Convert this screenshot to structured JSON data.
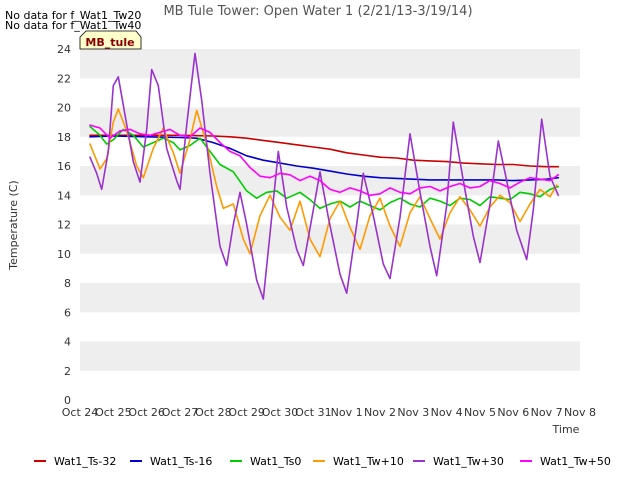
{
  "notes": [
    "No data for f_Wat1_Tw20",
    "No data for f_Wat1_Tw40"
  ],
  "site_tag": "MB_tule",
  "chart_data": {
    "type": "line",
    "title": "MB Tule Tower: Open Water 1 (2/21/13-3/19/14)",
    "xlabel": "Time",
    "ylabel": "Temperature (C)",
    "ylim": [
      0,
      24
    ],
    "yticks": [
      0,
      2,
      4,
      6,
      8,
      10,
      12,
      14,
      16,
      18,
      20,
      22,
      24
    ],
    "xlim": [
      0,
      15
    ],
    "xticks": [
      0,
      1,
      2,
      3,
      4,
      5,
      6,
      7,
      8,
      9,
      10,
      11,
      12,
      13,
      14,
      15
    ],
    "xtick_labels": [
      "Oct 24",
      "Oct 25",
      "Oct 26",
      "Oct 27",
      "Oct 28",
      "Oct 29",
      "Oct 30",
      "Oct 31",
      "Nov 1",
      "Nov 2",
      "Nov 3",
      "Nov 4",
      "Nov 5",
      "Nov 6",
      "Nov 7",
      "Nov 8"
    ],
    "grid": "horizontal bands",
    "legend_position": "bottom",
    "series": [
      {
        "name": "Wat1_Ts-32",
        "color": "#cc0000",
        "points": [
          [
            0.3,
            18.1
          ],
          [
            1,
            18.1
          ],
          [
            2,
            18.1
          ],
          [
            3,
            18.1
          ],
          [
            4,
            18.05
          ],
          [
            4.5,
            18.0
          ],
          [
            5,
            17.9
          ],
          [
            5.5,
            17.75
          ],
          [
            6,
            17.6
          ],
          [
            6.5,
            17.45
          ],
          [
            7,
            17.3
          ],
          [
            7.5,
            17.15
          ],
          [
            8,
            16.9
          ],
          [
            8.5,
            16.75
          ],
          [
            9,
            16.6
          ],
          [
            9.5,
            16.55
          ],
          [
            10,
            16.4
          ],
          [
            10.5,
            16.35
          ],
          [
            11,
            16.3
          ],
          [
            11.5,
            16.2
          ],
          [
            12,
            16.15
          ],
          [
            12.5,
            16.1
          ],
          [
            13,
            16.1
          ],
          [
            13.5,
            16.0
          ],
          [
            14,
            15.95
          ],
          [
            14.35,
            15.95
          ]
        ]
      },
      {
        "name": "Wat1_Ts-16",
        "color": "#0000cc",
        "points": [
          [
            0.3,
            18.0
          ],
          [
            1,
            18.05
          ],
          [
            2,
            18.0
          ],
          [
            3,
            17.95
          ],
          [
            3.5,
            17.9
          ],
          [
            4,
            17.6
          ],
          [
            4.5,
            17.2
          ],
          [
            5,
            16.7
          ],
          [
            5.5,
            16.4
          ],
          [
            6,
            16.2
          ],
          [
            6.5,
            16.0
          ],
          [
            7,
            15.85
          ],
          [
            7.5,
            15.65
          ],
          [
            8,
            15.45
          ],
          [
            8.5,
            15.3
          ],
          [
            9,
            15.2
          ],
          [
            9.5,
            15.15
          ],
          [
            10,
            15.1
          ],
          [
            10.5,
            15.05
          ],
          [
            11,
            15.05
          ],
          [
            11.5,
            15.05
          ],
          [
            12,
            15.05
          ],
          [
            12.5,
            15.05
          ],
          [
            13,
            15.0
          ],
          [
            13.5,
            15.05
          ],
          [
            14,
            15.1
          ],
          [
            14.35,
            15.2
          ]
        ]
      },
      {
        "name": "Wat1_Ts0",
        "color": "#00cc00",
        "points": [
          [
            0.3,
            18.7
          ],
          [
            0.6,
            18.1
          ],
          [
            0.8,
            17.5
          ],
          [
            1.0,
            17.8
          ],
          [
            1.3,
            18.5
          ],
          [
            1.6,
            18.1
          ],
          [
            1.9,
            17.3
          ],
          [
            2.2,
            17.6
          ],
          [
            2.5,
            17.9
          ],
          [
            2.8,
            17.6
          ],
          [
            3.0,
            17.1
          ],
          [
            3.3,
            17.4
          ],
          [
            3.6,
            17.9
          ],
          [
            3.9,
            17.0
          ],
          [
            4.2,
            16.1
          ],
          [
            4.6,
            15.6
          ],
          [
            5.0,
            14.3
          ],
          [
            5.3,
            13.8
          ],
          [
            5.6,
            14.2
          ],
          [
            5.9,
            14.3
          ],
          [
            6.2,
            13.8
          ],
          [
            6.6,
            14.2
          ],
          [
            6.9,
            13.7
          ],
          [
            7.2,
            13.1
          ],
          [
            7.5,
            13.4
          ],
          [
            7.8,
            13.6
          ],
          [
            8.1,
            13.2
          ],
          [
            8.4,
            13.6
          ],
          [
            8.7,
            13.3
          ],
          [
            9.0,
            13.0
          ],
          [
            9.3,
            13.5
          ],
          [
            9.6,
            13.8
          ],
          [
            9.9,
            13.4
          ],
          [
            10.2,
            13.2
          ],
          [
            10.5,
            13.8
          ],
          [
            10.8,
            13.6
          ],
          [
            11.1,
            13.3
          ],
          [
            11.4,
            13.8
          ],
          [
            11.7,
            13.7
          ],
          [
            12.0,
            13.3
          ],
          [
            12.3,
            13.9
          ],
          [
            12.6,
            13.8
          ],
          [
            12.9,
            13.7
          ],
          [
            13.2,
            14.2
          ],
          [
            13.5,
            14.1
          ],
          [
            13.8,
            13.9
          ],
          [
            14.1,
            14.4
          ],
          [
            14.35,
            14.6
          ]
        ]
      },
      {
        "name": "Wat1_Tw+10",
        "color": "#ff9900",
        "points": [
          [
            0.3,
            17.5
          ],
          [
            0.6,
            15.8
          ],
          [
            0.8,
            16.5
          ],
          [
            1.0,
            19.0
          ],
          [
            1.15,
            19.9
          ],
          [
            1.4,
            18.4
          ],
          [
            1.7,
            16.0
          ],
          [
            1.9,
            15.2
          ],
          [
            2.2,
            17.2
          ],
          [
            2.5,
            18.6
          ],
          [
            2.8,
            16.9
          ],
          [
            3.0,
            15.5
          ],
          [
            3.3,
            17.8
          ],
          [
            3.5,
            19.8
          ],
          [
            3.8,
            17.5
          ],
          [
            4.1,
            14.6
          ],
          [
            4.3,
            13.1
          ],
          [
            4.6,
            13.4
          ],
          [
            4.9,
            11.0
          ],
          [
            5.1,
            10.0
          ],
          [
            5.4,
            12.6
          ],
          [
            5.7,
            14.0
          ],
          [
            6.0,
            12.5
          ],
          [
            6.3,
            11.6
          ],
          [
            6.6,
            13.6
          ],
          [
            6.9,
            11.0
          ],
          [
            7.2,
            9.8
          ],
          [
            7.5,
            12.4
          ],
          [
            7.8,
            13.6
          ],
          [
            8.1,
            11.8
          ],
          [
            8.4,
            10.3
          ],
          [
            8.7,
            12.6
          ],
          [
            9.0,
            13.8
          ],
          [
            9.3,
            11.9
          ],
          [
            9.6,
            10.5
          ],
          [
            9.9,
            12.8
          ],
          [
            10.2,
            13.9
          ],
          [
            10.5,
            12.4
          ],
          [
            10.8,
            11.0
          ],
          [
            11.1,
            12.8
          ],
          [
            11.4,
            13.9
          ],
          [
            11.7,
            13.0
          ],
          [
            12.0,
            11.9
          ],
          [
            12.3,
            13.2
          ],
          [
            12.6,
            14.0
          ],
          [
            12.9,
            13.5
          ],
          [
            13.2,
            12.2
          ],
          [
            13.5,
            13.4
          ],
          [
            13.8,
            14.4
          ],
          [
            14.1,
            13.9
          ],
          [
            14.3,
            14.7
          ]
        ]
      },
      {
        "name": "Wat1_Tw+30",
        "color": "#9933cc",
        "points": [
          [
            0.3,
            16.6
          ],
          [
            0.5,
            15.5
          ],
          [
            0.65,
            14.4
          ],
          [
            0.85,
            17.0
          ],
          [
            1.0,
            21.5
          ],
          [
            1.15,
            22.1
          ],
          [
            1.35,
            19.5
          ],
          [
            1.6,
            16.3
          ],
          [
            1.8,
            14.9
          ],
          [
            2.0,
            18.5
          ],
          [
            2.15,
            22.6
          ],
          [
            2.35,
            21.5
          ],
          [
            2.6,
            17.2
          ],
          [
            2.9,
            15.0
          ],
          [
            3.0,
            14.4
          ],
          [
            3.2,
            18.8
          ],
          [
            3.45,
            23.7
          ],
          [
            3.65,
            20.5
          ],
          [
            3.9,
            15.5
          ],
          [
            4.2,
            10.5
          ],
          [
            4.4,
            9.2
          ],
          [
            4.6,
            12.0
          ],
          [
            4.8,
            14.2
          ],
          [
            5.0,
            12.0
          ],
          [
            5.3,
            8.2
          ],
          [
            5.5,
            6.9
          ],
          [
            5.75,
            12.5
          ],
          [
            5.95,
            17.0
          ],
          [
            6.2,
            13.2
          ],
          [
            6.5,
            10.3
          ],
          [
            6.7,
            9.2
          ],
          [
            7.0,
            13.0
          ],
          [
            7.2,
            15.6
          ],
          [
            7.45,
            12.5
          ],
          [
            7.8,
            8.6
          ],
          [
            8.0,
            7.3
          ],
          [
            8.3,
            12.0
          ],
          [
            8.5,
            15.5
          ],
          [
            8.8,
            12.6
          ],
          [
            9.1,
            9.3
          ],
          [
            9.3,
            8.3
          ],
          [
            9.6,
            12.5
          ],
          [
            9.9,
            18.2
          ],
          [
            10.2,
            14.2
          ],
          [
            10.5,
            10.5
          ],
          [
            10.7,
            8.5
          ],
          [
            11.0,
            13.3
          ],
          [
            11.2,
            19.0
          ],
          [
            11.5,
            15.0
          ],
          [
            11.8,
            11.2
          ],
          [
            12.0,
            9.4
          ],
          [
            12.3,
            13.4
          ],
          [
            12.55,
            17.7
          ],
          [
            12.8,
            15.0
          ],
          [
            13.1,
            11.6
          ],
          [
            13.4,
            9.6
          ],
          [
            13.6,
            13.0
          ],
          [
            13.85,
            19.2
          ],
          [
            14.1,
            15.3
          ],
          [
            14.35,
            14.0
          ]
        ]
      },
      {
        "name": "Wat1_Tw+50",
        "color": "#ff00ff",
        "points": [
          [
            0.3,
            18.8
          ],
          [
            0.6,
            18.6
          ],
          [
            0.9,
            17.9
          ],
          [
            1.2,
            18.4
          ],
          [
            1.5,
            18.5
          ],
          [
            1.8,
            18.2
          ],
          [
            2.1,
            18.1
          ],
          [
            2.4,
            18.3
          ],
          [
            2.7,
            18.5
          ],
          [
            3.0,
            18.1
          ],
          [
            3.3,
            18.0
          ],
          [
            3.6,
            18.6
          ],
          [
            3.9,
            18.3
          ],
          [
            4.2,
            17.6
          ],
          [
            4.5,
            17.0
          ],
          [
            4.8,
            16.7
          ],
          [
            5.1,
            15.9
          ],
          [
            5.4,
            15.3
          ],
          [
            5.7,
            15.2
          ],
          [
            6.0,
            15.5
          ],
          [
            6.3,
            15.4
          ],
          [
            6.6,
            15.0
          ],
          [
            6.9,
            15.3
          ],
          [
            7.2,
            15.0
          ],
          [
            7.5,
            14.4
          ],
          [
            7.8,
            14.2
          ],
          [
            8.1,
            14.5
          ],
          [
            8.4,
            14.3
          ],
          [
            8.7,
            14.0
          ],
          [
            9.0,
            14.1
          ],
          [
            9.3,
            14.5
          ],
          [
            9.6,
            14.2
          ],
          [
            9.9,
            14.1
          ],
          [
            10.2,
            14.5
          ],
          [
            10.5,
            14.6
          ],
          [
            10.8,
            14.3
          ],
          [
            11.1,
            14.6
          ],
          [
            11.4,
            14.8
          ],
          [
            11.7,
            14.5
          ],
          [
            12.0,
            14.6
          ],
          [
            12.3,
            15.0
          ],
          [
            12.6,
            14.8
          ],
          [
            12.9,
            14.5
          ],
          [
            13.2,
            14.9
          ],
          [
            13.5,
            15.2
          ],
          [
            13.8,
            15.1
          ],
          [
            14.1,
            15.0
          ],
          [
            14.35,
            15.4
          ]
        ]
      }
    ]
  }
}
